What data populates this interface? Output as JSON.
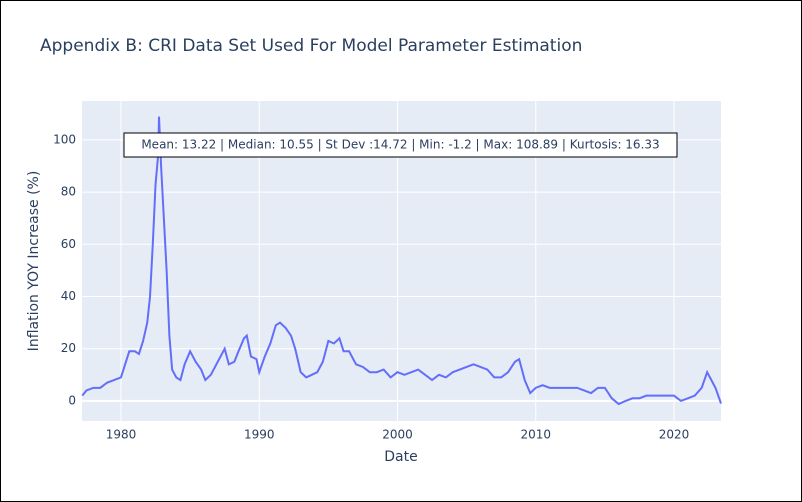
{
  "chart_data": {
    "type": "line",
    "title": "Appendix B: CRI Data Set Used For Model Parameter Estimation",
    "x_label": "Date",
    "y_label": "Inflation YOY Increase (%)",
    "annotation": "Mean: 13.22 | Median: 10.55 | St Dev :14.72 | Min: -1.2 | Max: 108.89 | Kurtosis: 16.33",
    "x": [
      1977.2,
      1977.5,
      1978,
      1978.5,
      1979,
      1979.5,
      1980,
      1980.3,
      1980.6,
      1981,
      1981.3,
      1981.6,
      1981.9,
      1982.1,
      1982.3,
      1982.5,
      1982.7,
      1982.75,
      1982.9,
      1983.1,
      1983.3,
      1983.5,
      1983.7,
      1984,
      1984.3,
      1984.6,
      1985,
      1985.4,
      1985.8,
      1986.1,
      1986.5,
      1987,
      1987.5,
      1987.8,
      1988.2,
      1988.5,
      1988.9,
      1989.1,
      1989.4,
      1989.8,
      1990,
      1990.4,
      1990.8,
      1991.2,
      1991.5,
      1991.9,
      1992.3,
      1992.6,
      1993,
      1993.4,
      1993.8,
      1994.2,
      1994.6,
      1995,
      1995.4,
      1995.8,
      1996.1,
      1996.5,
      1997,
      1997.5,
      1998,
      1998.5,
      1999,
      1999.5,
      2000,
      2000.5,
      2001,
      2001.5,
      2002,
      2002.5,
      2003,
      2003.5,
      2004,
      2004.5,
      2005,
      2005.5,
      2006,
      2006.5,
      2007,
      2007.5,
      2008,
      2008.5,
      2008.8,
      2009.2,
      2009.6,
      2010,
      2010.5,
      2011,
      2011.5,
      2012,
      2012.5,
      2013,
      2013.5,
      2014,
      2014.5,
      2015,
      2015.5,
      2016,
      2016.5,
      2017,
      2017.5,
      2018,
      2018.5,
      2019,
      2019.5,
      2020,
      2020.5,
      2021,
      2021.5,
      2022,
      2022.4,
      2022.7,
      2023,
      2023.4
    ],
    "series": [
      {
        "name": "CRI",
        "color": "#636efa",
        "values": [
          2,
          4,
          5,
          5,
          7,
          8,
          9,
          14,
          19,
          19,
          18,
          23,
          30,
          40,
          60,
          83,
          95,
          108.89,
          90,
          70,
          50,
          25,
          12,
          9,
          8,
          14,
          19,
          15,
          12,
          8,
          10,
          15,
          20,
          14,
          15,
          19,
          24,
          25,
          17,
          16,
          11,
          17,
          22,
          29,
          30,
          28,
          25,
          20,
          11,
          9,
          10,
          11,
          15,
          23,
          22,
          24,
          19,
          19,
          14,
          13,
          11,
          11,
          12,
          9,
          11,
          10,
          11,
          12,
          10,
          8,
          10,
          9,
          11,
          12,
          13,
          14,
          13,
          12,
          9,
          9,
          11,
          15,
          16,
          8,
          3,
          5,
          6,
          5,
          5,
          5,
          5,
          5,
          4,
          3,
          5,
          5,
          1,
          -1.2,
          0,
          1,
          1,
          2,
          2,
          2,
          2,
          2,
          0,
          1,
          2,
          5,
          11,
          8,
          5,
          -1
        ]
      }
    ],
    "xlim": [
      1977.18,
      2023.4
    ],
    "ylim": [
      -7.7,
      114.9
    ],
    "xticks": [
      1980,
      1990,
      2000,
      2010,
      2020
    ],
    "yticks": [
      0,
      20,
      40,
      60,
      80,
      100
    ],
    "grid": true,
    "plot_bg": "#e5ecf6"
  }
}
